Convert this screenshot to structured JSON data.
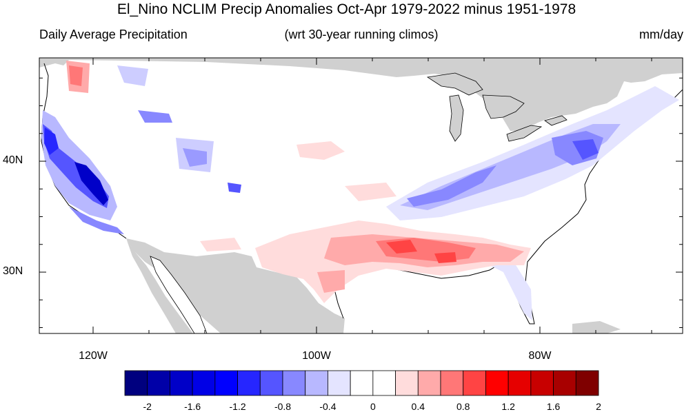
{
  "header": {
    "title": "El_Nino NCLIM Precip Anomalies Oct-Apr 1979-2022 minus 1951-1978",
    "left_subtitle": "Daily Average Precipitation",
    "center_subtitle": "(wrt 30-year running climos)",
    "right_subtitle": "mm/day"
  },
  "axes": {
    "lat_labels": [
      {
        "text": "40N",
        "lat": 40
      },
      {
        "text": "30N",
        "lat": 30
      }
    ],
    "lon_labels": [
      {
        "text": "120W",
        "lon": -120
      },
      {
        "text": "100W",
        "lon": -100
      },
      {
        "text": "80W",
        "lon": -80
      }
    ]
  },
  "colorbar": {
    "colors": [
      "#00007f",
      "#0000a8",
      "#0000c8",
      "#0000e6",
      "#0000ff",
      "#2626ff",
      "#5555ff",
      "#8888ff",
      "#b8b8ff",
      "#e4e4ff",
      "#ffffff",
      "#ffffff",
      "#ffdcdc",
      "#ffaaaa",
      "#ff7777",
      "#ff4444",
      "#ff0000",
      "#e60000",
      "#c80000",
      "#a80000",
      "#7f0000"
    ],
    "labels": [
      "-2",
      "-1.6",
      "-1.2",
      "-0.8",
      "-0.4",
      "0",
      "0.4",
      "0.8",
      "1.2",
      "1.6",
      "2"
    ]
  },
  "map": {
    "land_color": "#ffffff",
    "masked_color": "#d0d0d0"
  }
}
